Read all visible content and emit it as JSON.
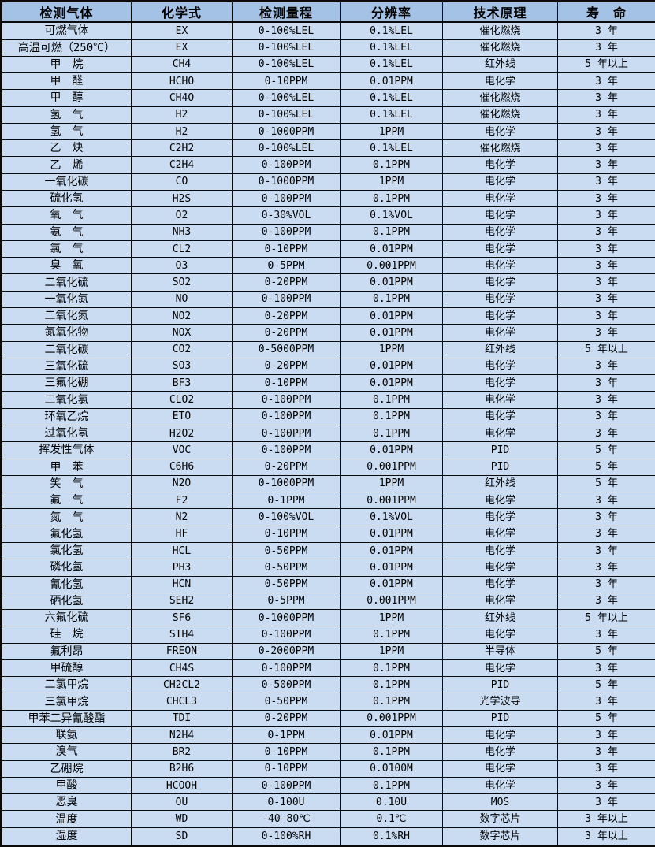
{
  "table": {
    "columns": [
      "检测气体",
      "化学式",
      "检测量程",
      "分辨率",
      "技术原理",
      "寿　命"
    ],
    "rows": [
      [
        "可燃气体",
        "EX",
        "0-100%LEL",
        "0.1%LEL",
        "催化燃烧",
        "3 年"
      ],
      [
        "高温可燃（250℃）",
        "EX",
        "0-100%LEL",
        "0.1%LEL",
        "催化燃烧",
        "3 年"
      ],
      [
        "甲　烷",
        "CH4",
        "0-100%LEL",
        "0.1%LEL",
        "红外线",
        "5 年以上"
      ],
      [
        "甲　醛",
        "HCHO",
        "0-10PPM",
        "0.01PPM",
        "电化学",
        "3 年"
      ],
      [
        "甲　醇",
        "CH4O",
        "0-100%LEL",
        "0.1%LEL",
        "催化燃烧",
        "3 年"
      ],
      [
        "氢　气",
        "H2",
        "0-100%LEL",
        "0.1%LEL",
        "催化燃烧",
        "3 年"
      ],
      [
        "氢　气",
        "H2",
        "0-1000PPM",
        "1PPM",
        "电化学",
        "3 年"
      ],
      [
        "乙　炔",
        "C2H2",
        "0-100%LEL",
        "0.1%LEL",
        "催化燃烧",
        "3 年"
      ],
      [
        "乙　烯",
        "C2H4",
        "0-100PPM",
        "0.1PPM",
        "电化学",
        "3 年"
      ],
      [
        "一氧化碳",
        "CO",
        "0-1000PPM",
        "1PPM",
        "电化学",
        "3 年"
      ],
      [
        "硫化氢",
        "H2S",
        "0-100PPM",
        "0.1PPM",
        "电化学",
        "3 年"
      ],
      [
        "氧　气",
        "O2",
        "0-30%VOL",
        "0.1%VOL",
        "电化学",
        "3 年"
      ],
      [
        "氨　气",
        "NH3",
        "0-100PPM",
        "0.1PPM",
        "电化学",
        "3 年"
      ],
      [
        "氯　气",
        "CL2",
        "0-10PPM",
        "0.01PPM",
        "电化学",
        "3 年"
      ],
      [
        "臭　氧",
        "O3",
        "0-5PPM",
        "0.001PPM",
        "电化学",
        "3 年"
      ],
      [
        "二氧化硫",
        "SO2",
        "0-20PPM",
        "0.01PPM",
        "电化学",
        "3 年"
      ],
      [
        "一氧化氮",
        "NO",
        "0-100PPM",
        "0.1PPM",
        "电化学",
        "3 年"
      ],
      [
        "二氧化氮",
        "NO2",
        "0-20PPM",
        "0.01PPM",
        "电化学",
        "3 年"
      ],
      [
        "氮氧化物",
        "NOX",
        "0-20PPM",
        "0.01PPM",
        "电化学",
        "3 年"
      ],
      [
        "二氧化碳",
        "CO2",
        "0-5000PPM",
        "1PPM",
        "红外线",
        "5 年以上"
      ],
      [
        "三氧化硫",
        "SO3",
        "0-20PPM",
        "0.01PPM",
        "电化学",
        "3 年"
      ],
      [
        "三氟化硼",
        "BF3",
        "0-10PPM",
        "0.01PPM",
        "电化学",
        "3 年"
      ],
      [
        "二氧化氯",
        "CLO2",
        "0-100PPM",
        "0.1PPM",
        "电化学",
        "3 年"
      ],
      [
        "环氧乙烷",
        "ETO",
        "0-100PPM",
        "0.1PPM",
        "电化学",
        "3 年"
      ],
      [
        "过氧化氢",
        "H2O2",
        "0-100PPM",
        "0.1PPM",
        "电化学",
        "3 年"
      ],
      [
        "挥发性气体",
        "VOC",
        "0-100PPM",
        "0.01PPM",
        "PID",
        "5 年"
      ],
      [
        "甲　苯",
        "C6H6",
        "0-20PPM",
        "0.001PPM",
        "PID",
        "5 年"
      ],
      [
        "笑　气",
        "N2O",
        "0-1000PPM",
        "1PPM",
        "红外线",
        "5 年"
      ],
      [
        "氟　气",
        "F2",
        "0-1PPM",
        "0.001PPM",
        "电化学",
        "3 年"
      ],
      [
        "氮　气",
        "N2",
        "0-100%VOL",
        "0.1%VOL",
        "电化学",
        "3 年"
      ],
      [
        "氟化氢",
        "HF",
        "0-10PPM",
        "0.01PPM",
        "电化学",
        "3 年"
      ],
      [
        "氯化氢",
        "HCL",
        "0-50PPM",
        "0.01PPM",
        "电化学",
        "3 年"
      ],
      [
        "磷化氢",
        "PH3",
        "0-50PPM",
        "0.01PPM",
        "电化学",
        "3 年"
      ],
      [
        "氰化氢",
        "HCN",
        "0-50PPM",
        "0.01PPM",
        "电化学",
        "3 年"
      ],
      [
        "硒化氢",
        "SEH2",
        "0-5PPM",
        "0.001PPM",
        "电化学",
        "3 年"
      ],
      [
        "六氟化硫",
        "SF6",
        "0-1000PPM",
        "1PPM",
        "红外线",
        "5 年以上"
      ],
      [
        "硅　烷",
        "SIH4",
        "0-100PPM",
        "0.1PPM",
        "电化学",
        "3 年"
      ],
      [
        "氟利昂",
        "FREON",
        "0-2000PPM",
        "1PPM",
        "半导体",
        "5 年"
      ],
      [
        "甲硫醇",
        "CH4S",
        "0-100PPM",
        "0.1PPM",
        "电化学",
        "3 年"
      ],
      [
        "二氯甲烷",
        "CH2CL2",
        "0-500PPM",
        "0.1PPM",
        "PID",
        "5 年"
      ],
      [
        "三氯甲烷",
        "CHCL3",
        "0-50PPM",
        "0.1PPM",
        "光学波导",
        "3 年"
      ],
      [
        "甲苯二异氰酸酯",
        "TDI",
        "0-20PPM",
        "0.001PPM",
        "PID",
        "5 年"
      ],
      [
        "联氨",
        "N2H4",
        "0-1PPM",
        "0.01PPM",
        "电化学",
        "3 年"
      ],
      [
        "溴气",
        "BR2",
        "0-10PPM",
        "0.1PPM",
        "电化学",
        "3 年"
      ],
      [
        "乙硼烷",
        "B2H6",
        "0-10PPM",
        "0.0100M",
        "电化学",
        "3 年"
      ],
      [
        "甲酸",
        "HCOOH",
        "0-100PPM",
        "0.1PPM",
        "电化学",
        "3 年"
      ],
      [
        "恶臭",
        "OU",
        "0-100U",
        "0.10U",
        "MOS",
        "3 年"
      ],
      [
        "温度",
        "WD",
        "-40—80℃",
        "0.1℃",
        "数字芯片",
        "3 年以上"
      ],
      [
        "湿度",
        "SD",
        "0-100%RH",
        "0.1%RH",
        "数字芯片",
        "3 年以上"
      ]
    ]
  },
  "colors": {
    "header_bg": "#a3c2e6",
    "row_bg": "#c9dcf2",
    "border": "#0b0b0b",
    "text": "#000000"
  }
}
